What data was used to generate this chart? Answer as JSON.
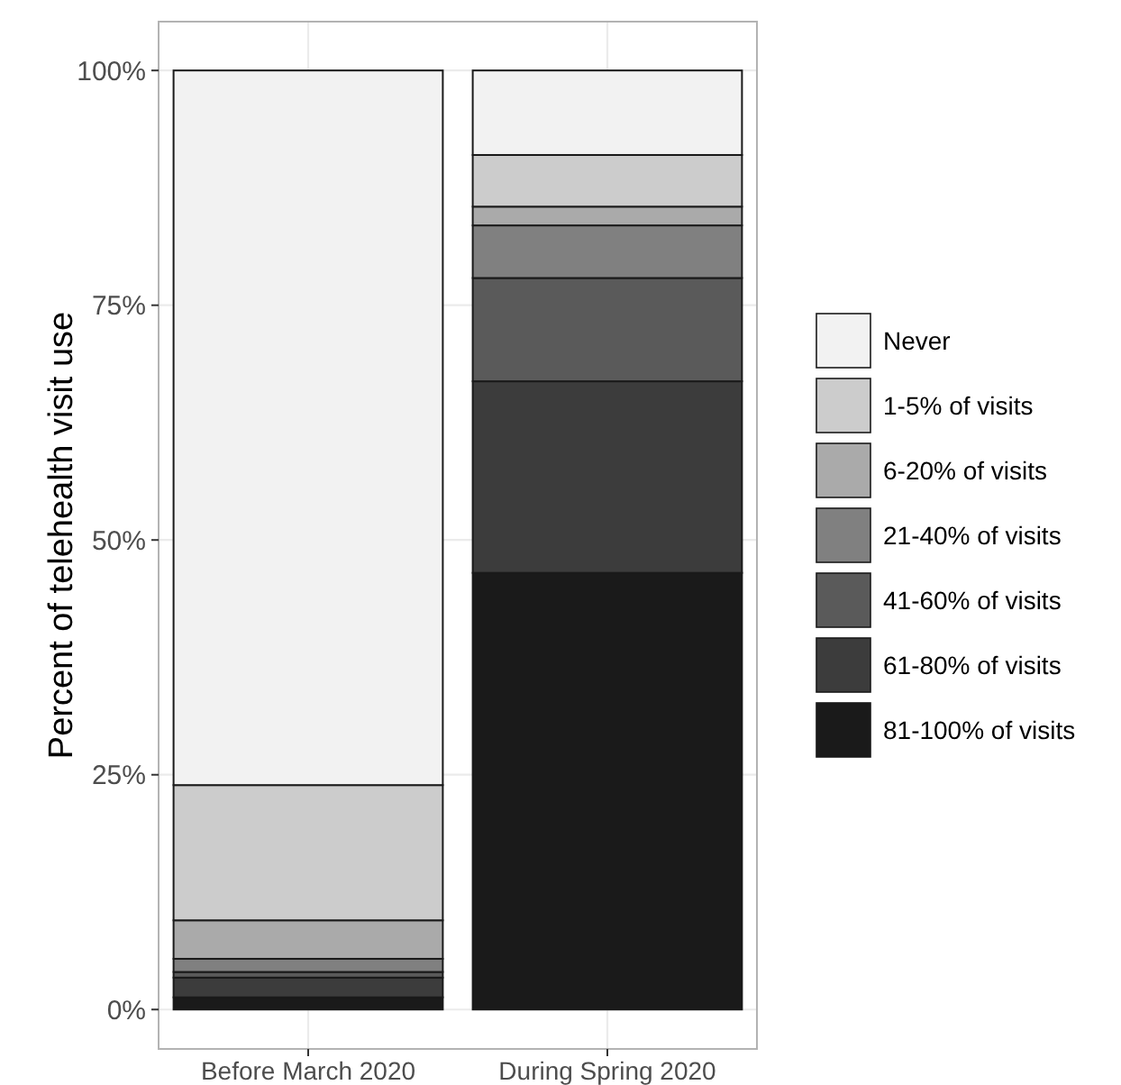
{
  "chart_data": {
    "type": "bar",
    "stacked": true,
    "ylabel": "Percent of telehealth visit use",
    "categories": [
      "Before March 2020",
      "During Spring 2020"
    ],
    "series": [
      {
        "name": "81-100% of visits",
        "color": "#1a1a1a",
        "values": [
          1.3,
          46.5
        ]
      },
      {
        "name": "61-80% of visits",
        "color": "#3c3c3c",
        "values": [
          2.1,
          20.4
        ]
      },
      {
        "name": "41-60% of visits",
        "color": "#5a5a5a",
        "values": [
          0.6,
          11.0
        ]
      },
      {
        "name": "21-40% of visits",
        "color": "#808080",
        "values": [
          1.4,
          5.6
        ]
      },
      {
        "name": "6-20% of visits",
        "color": "#aaaaaa",
        "values": [
          4.1,
          2.0
        ]
      },
      {
        "name": "1-5% of visits",
        "color": "#cccccc",
        "values": [
          14.4,
          5.5
        ]
      },
      {
        "name": "Never",
        "color": "#f2f2f2",
        "values": [
          76.1,
          9.0
        ]
      }
    ],
    "ylim": [
      -4.2,
      105.2
    ],
    "yticks": [
      {
        "value": 0,
        "label": "0%"
      },
      {
        "value": 25,
        "label": "25%"
      },
      {
        "value": 50,
        "label": "50%"
      },
      {
        "value": 75,
        "label": "75%"
      },
      {
        "value": 100,
        "label": "100%"
      }
    ],
    "grid": true,
    "legend": "right"
  }
}
